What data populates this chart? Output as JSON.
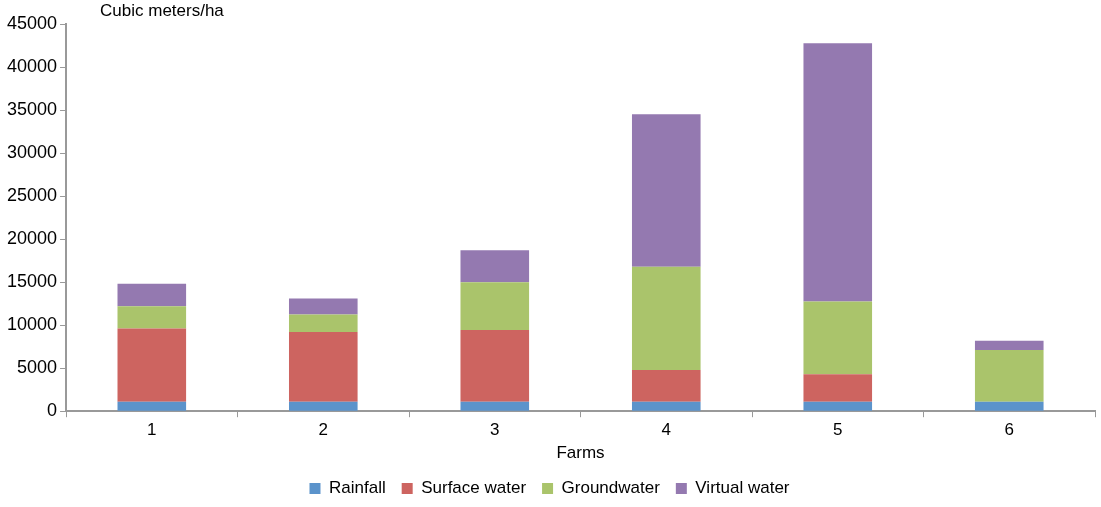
{
  "chart_data": {
    "type": "bar",
    "stacked": true,
    "ylabel": "Cubic meters/ha",
    "xlabel": "Farms",
    "categories": [
      "1",
      "2",
      "3",
      "4",
      "5",
      "6"
    ],
    "series": [
      {
        "name": "Rainfall",
        "color": "#5b93cb",
        "values": [
          1100,
          1100,
          1100,
          1100,
          1100,
          1100
        ]
      },
      {
        "name": "Surface water",
        "color": "#cd6460",
        "values": [
          8500,
          8100,
          8350,
          3700,
          3200,
          0
        ]
      },
      {
        "name": "Groundwater",
        "color": "#aac46b",
        "values": [
          2600,
          2050,
          5550,
          12000,
          8450,
          6000
        ]
      },
      {
        "name": "Virtual water",
        "color": "#9479b0",
        "values": [
          2600,
          1850,
          3700,
          17700,
          30000,
          1100
        ]
      }
    ],
    "ylim": [
      0,
      45000
    ],
    "yticks": [
      0,
      5000,
      10000,
      15000,
      20000,
      25000,
      30000,
      35000,
      40000,
      45000
    ],
    "grid": false,
    "legend": "bottom"
  }
}
